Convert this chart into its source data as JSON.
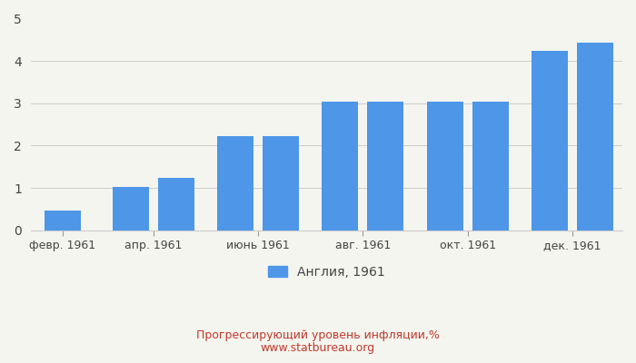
{
  "bar_values": [
    0.47,
    1.03,
    1.24,
    2.22,
    2.22,
    3.04,
    3.04,
    3.04,
    3.04,
    4.23,
    4.44
  ],
  "bar_positions": [
    0,
    1.5,
    2.5,
    3.8,
    4.8,
    6.1,
    7.1,
    8.4,
    9.4,
    10.7,
    11.7
  ],
  "xtick_positions": [
    0,
    2.0,
    4.3,
    6.6,
    8.9,
    11.2
  ],
  "xtick_labels": [
    "февр. 1961",
    "апр. 1961",
    "июнь 1961",
    "авг. 1961",
    "окт. 1961",
    "дек. 1961"
  ],
  "bar_color": "#4d96e8",
  "ylim": [
    0,
    5
  ],
  "yticks": [
    0,
    1,
    2,
    3,
    4,
    5
  ],
  "legend_label": "Англия, 1961",
  "title": "Прогрессирующий уровень инфляции,%",
  "subtitle": "www.statbureau.org",
  "title_color": "#c0392b",
  "background_color": "#f5f5f0",
  "bar_width": 0.8
}
